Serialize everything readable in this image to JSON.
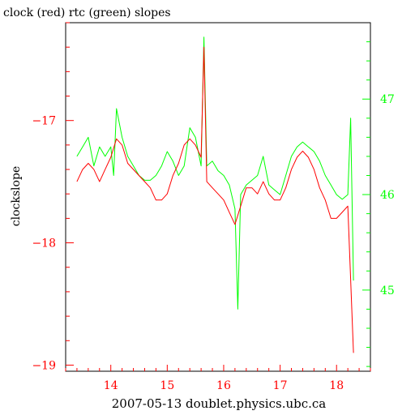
{
  "chart_data": {
    "type": "line",
    "title": "clock (red) rtc (green) slopes",
    "xlabel": "2007-05-13 doublet.physics.ubc.ca",
    "ylabel_left": "clockslope",
    "ylabel_right": "",
    "xlim": [
      13.2,
      18.6
    ],
    "x_ticks": [
      14,
      15,
      16,
      17,
      18
    ],
    "x_tick_labels": [
      "14",
      "15",
      "16",
      "17",
      "18"
    ],
    "y_left_lim": [
      -19.05,
      -16.2
    ],
    "y_left_ticks": [
      -17,
      -18,
      -19
    ],
    "y_left_tick_labels": [
      "−17",
      "−18",
      "−19"
    ],
    "y_right_lim": [
      44.15,
      47.8
    ],
    "y_right_ticks": [
      47,
      46,
      45
    ],
    "y_right_tick_labels": [
      "47",
      "46",
      "45"
    ],
    "grid": false,
    "colors": {
      "clock": "#ff0000",
      "rtc": "#00ff00",
      "overlap": "#808000",
      "axis_left": "#ff0000",
      "axis_right": "#00ff00",
      "frame": "#000000"
    },
    "series": [
      {
        "name": "clock",
        "axis": "left",
        "x": [
          13.4,
          13.5,
          13.6,
          13.7,
          13.8,
          13.9,
          14.0,
          14.1,
          14.2,
          14.3,
          14.4,
          14.5,
          14.6,
          14.7,
          14.8,
          14.9,
          15.0,
          15.1,
          15.2,
          15.3,
          15.4,
          15.5,
          15.6,
          15.65,
          15.7,
          15.8,
          15.9,
          16.0,
          16.1,
          16.2,
          16.3,
          16.4,
          16.5,
          16.6,
          16.7,
          16.8,
          16.9,
          17.0,
          17.1,
          17.2,
          17.3,
          17.4,
          17.5,
          17.6,
          17.7,
          17.8,
          17.9,
          18.0,
          18.1,
          18.2,
          18.25,
          18.3
        ],
        "y": [
          -17.5,
          -17.4,
          -17.35,
          -17.4,
          -17.5,
          -17.4,
          -17.3,
          -17.15,
          -17.2,
          -17.35,
          -17.4,
          -17.45,
          -17.5,
          -17.55,
          -17.65,
          -17.65,
          -17.6,
          -17.45,
          -17.35,
          -17.2,
          -17.15,
          -17.2,
          -17.3,
          -16.4,
          -17.5,
          -17.55,
          -17.6,
          -17.65,
          -17.75,
          -17.85,
          -17.7,
          -17.55,
          -17.55,
          -17.6,
          -17.5,
          -17.6,
          -17.65,
          -17.65,
          -17.55,
          -17.4,
          -17.3,
          -17.25,
          -17.3,
          -17.4,
          -17.55,
          -17.65,
          -17.8,
          -17.8,
          -17.75,
          -17.7,
          -18.3,
          -18.9
        ]
      },
      {
        "name": "rtc",
        "axis": "right",
        "x": [
          13.4,
          13.5,
          13.6,
          13.7,
          13.8,
          13.9,
          14.0,
          14.05,
          14.1,
          14.2,
          14.3,
          14.4,
          14.5,
          14.6,
          14.7,
          14.8,
          14.9,
          15.0,
          15.1,
          15.2,
          15.3,
          15.4,
          15.5,
          15.6,
          15.65,
          15.7,
          15.8,
          15.9,
          16.0,
          16.1,
          16.2,
          16.25,
          16.3,
          16.4,
          16.5,
          16.6,
          16.7,
          16.8,
          16.9,
          17.0,
          17.1,
          17.2,
          17.3,
          17.4,
          17.5,
          17.6,
          17.7,
          17.8,
          17.9,
          18.0,
          18.1,
          18.2,
          18.25,
          18.3
        ],
        "y": [
          46.4,
          46.5,
          46.6,
          46.3,
          46.5,
          46.4,
          46.5,
          46.2,
          46.9,
          46.6,
          46.4,
          46.3,
          46.2,
          46.15,
          46.15,
          46.2,
          46.3,
          46.45,
          46.35,
          46.2,
          46.3,
          46.7,
          46.6,
          46.3,
          47.65,
          46.3,
          46.35,
          46.25,
          46.2,
          46.1,
          45.85,
          44.8,
          46.0,
          46.1,
          46.15,
          46.2,
          46.4,
          46.1,
          46.05,
          46.0,
          46.2,
          46.4,
          46.5,
          46.55,
          46.5,
          46.45,
          46.35,
          46.2,
          46.1,
          46.0,
          45.95,
          46.0,
          46.8,
          45.1
        ]
      }
    ]
  }
}
